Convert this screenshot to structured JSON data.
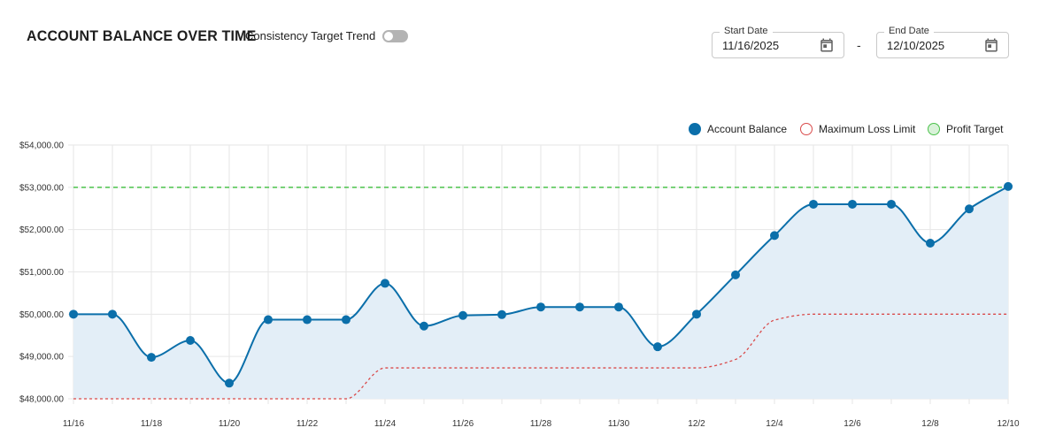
{
  "header": {
    "title": "ACCOUNT BALANCE OVER TIME",
    "toggle_label": "Consistency Target Trend",
    "toggle_on": false
  },
  "date_range": {
    "start_label": "Start Date",
    "start_value": "11/16/2025",
    "separator": "-",
    "end_label": "End Date",
    "end_value": "12/10/2025"
  },
  "colors": {
    "balance": "#0b6faa",
    "balance_fill": "#e3eef7",
    "max_loss": "#d94a4a",
    "profit_target": "#4bc24b",
    "profit_target_fill": "#d9f2d9"
  },
  "chart_data": {
    "type": "line",
    "title": "ACCOUNT BALANCE OVER TIME",
    "xlabel": "",
    "ylabel": "",
    "ylim": [
      48000,
      54000
    ],
    "y_ticks": [
      "$48,000.00",
      "$49,000.00",
      "$50,000.00",
      "$51,000.00",
      "$52,000.00",
      "$53,000.00",
      "$54,000.00"
    ],
    "y_tick_values": [
      48000,
      49000,
      50000,
      51000,
      52000,
      53000,
      54000
    ],
    "x": [
      "11/16",
      "11/17",
      "11/18",
      "11/19",
      "11/20",
      "11/21",
      "11/22",
      "11/23",
      "11/24",
      "11/25",
      "11/26",
      "11/27",
      "11/28",
      "11/29",
      "11/30",
      "12/1",
      "12/2",
      "12/3",
      "12/4",
      "12/5",
      "12/6",
      "12/7",
      "12/8",
      "12/9",
      "12/10"
    ],
    "x_tick_labels": [
      "11/16",
      "11/18",
      "11/20",
      "11/22",
      "11/24",
      "11/26",
      "11/28",
      "11/30",
      "12/2",
      "12/4",
      "12/6",
      "12/8",
      "12/10"
    ],
    "grid": true,
    "legend_position": "top-right",
    "series": [
      {
        "name": "Account Balance",
        "values": [
          50000,
          50000,
          48980,
          49380,
          48370,
          49870,
          49870,
          49870,
          50730,
          49720,
          49970,
          49990,
          50170,
          50170,
          50170,
          49230,
          50000,
          50930,
          51860,
          52600,
          52600,
          52600,
          51680,
          52490,
          53020
        ]
      },
      {
        "name": "Maximum Loss Limit",
        "values": [
          48000,
          48000,
          48000,
          48000,
          48000,
          48000,
          48000,
          48000,
          48730,
          48730,
          48730,
          48730,
          48730,
          48730,
          48730,
          48730,
          48730,
          48930,
          49860,
          50000,
          50000,
          50000,
          50000,
          50000,
          50000
        ]
      },
      {
        "name": "Profit Target",
        "values": [
          53000,
          53000,
          53000,
          53000,
          53000,
          53000,
          53000,
          53000,
          53000,
          53000,
          53000,
          53000,
          53000,
          53000,
          53000,
          53000,
          53000,
          53000,
          53000,
          53000,
          53000,
          53000,
          53000,
          53000,
          53000
        ]
      }
    ]
  }
}
